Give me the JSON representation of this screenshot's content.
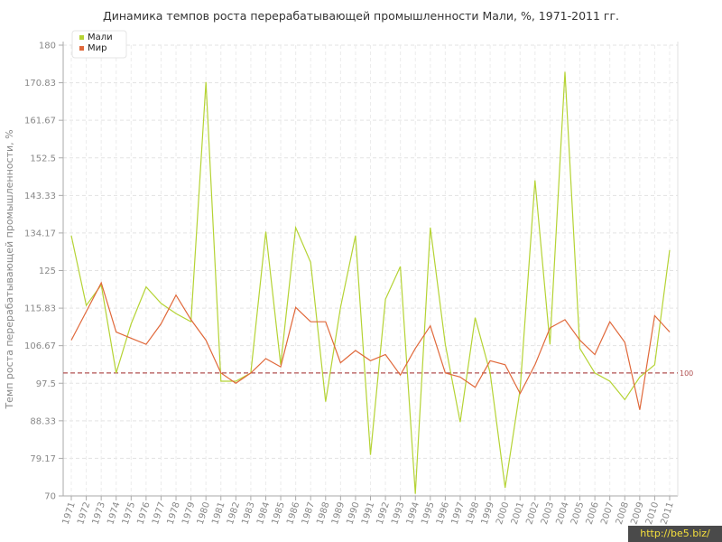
{
  "chart_data": {
    "type": "line",
    "title": "Динамика темпов роста перерабатывающей промышленности Мали, %, 1971-2011 гг.",
    "xlabel": "",
    "ylabel": "Темп роста перерабатывающей промышленности, %",
    "ylim": [
      70,
      180
    ],
    "yticks": [
      "70",
      "79.17",
      "88.33",
      "97.5",
      "106.67",
      "115.83",
      "125",
      "134.17",
      "143.33",
      "152.5",
      "161.67",
      "170.83",
      "180"
    ],
    "categories": [
      "1971",
      "1972",
      "1973",
      "1974",
      "1975",
      "1976",
      "1977",
      "1978",
      "1979",
      "1980",
      "1981",
      "1982",
      "1983",
      "1984",
      "1985",
      "1986",
      "1987",
      "1988",
      "1989",
      "1990",
      "1991",
      "1992",
      "1993",
      "1994",
      "1995",
      "1996",
      "1997",
      "1998",
      "1999",
      "2000",
      "2001",
      "2002",
      "2003",
      "2004",
      "2005",
      "2006",
      "2007",
      "2008",
      "2009",
      "2010",
      "2011"
    ],
    "series": [
      {
        "name": "Мали",
        "color": "#b5d334",
        "values": [
          133.5,
          116.5,
          121.5,
          100,
          112,
          121,
          117,
          114.5,
          112.5,
          171,
          98,
          98,
          100,
          134.5,
          102,
          135.5,
          127,
          93,
          116,
          133.5,
          80,
          118,
          126,
          70.5,
          135.5,
          107,
          88,
          113.5,
          100,
          72,
          96,
          147,
          107,
          173.5,
          106,
          100,
          98,
          93.5,
          99,
          102,
          130
        ]
      },
      {
        "name": "Мир",
        "color": "#e0683a",
        "values": [
          108,
          115,
          122,
          110,
          108.5,
          107,
          112,
          119,
          113,
          108,
          100,
          97.5,
          100,
          103.5,
          101.5,
          116,
          112.5,
          112.5,
          102.5,
          105.5,
          103,
          104.5,
          99.5,
          106,
          111.5,
          100,
          99,
          96.5,
          103,
          102,
          95,
          102,
          111,
          113,
          108,
          104.5,
          112.5,
          107.5,
          91,
          114,
          110
        ]
      }
    ],
    "reference_line": {
      "value": 100,
      "label": "100",
      "color": "#b05050"
    },
    "grid": true,
    "legend_position": "top-left"
  },
  "watermark": "http://be5.biz/"
}
